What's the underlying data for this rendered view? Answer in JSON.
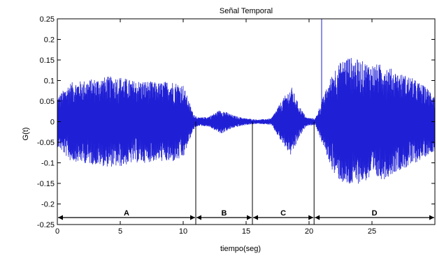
{
  "chart_data": {
    "type": "line",
    "title": "Señal Temporal",
    "xlabel": "tiempo(seg)",
    "ylabel": "G(t)",
    "xlim": [
      0,
      30
    ],
    "ylim": [
      -0.25,
      0.25
    ],
    "xticks": [
      0,
      5,
      10,
      15,
      20,
      25
    ],
    "xtick_labels": [
      "0",
      "5",
      "10",
      "15",
      "20",
      "25"
    ],
    "yticks": [
      -0.25,
      -0.2,
      -0.15,
      -0.1,
      -0.05,
      0,
      0.05,
      0.1,
      0.15,
      0.2,
      0.25
    ],
    "ytick_labels": [
      "-0.25",
      "-0.2",
      "-0.15",
      "-0.1",
      "-0.05",
      "0",
      "0.05",
      "0.1",
      "0.15",
      "0.2",
      "0.25"
    ],
    "grid": false,
    "series": [
      {
        "color": "#1f1fd6",
        "envelope": [
          {
            "t": 0.0,
            "amp": 0.06
          },
          {
            "t": 1.0,
            "amp": 0.095
          },
          {
            "t": 2.0,
            "amp": 0.1
          },
          {
            "t": 3.0,
            "amp": 0.105
          },
          {
            "t": 4.0,
            "amp": 0.11
          },
          {
            "t": 5.0,
            "amp": 0.11
          },
          {
            "t": 6.0,
            "amp": 0.1
          },
          {
            "t": 7.0,
            "amp": 0.1
          },
          {
            "t": 8.0,
            "amp": 0.095
          },
          {
            "t": 9.0,
            "amp": 0.1
          },
          {
            "t": 10.0,
            "amp": 0.09
          },
          {
            "t": 10.8,
            "amp": 0.02
          },
          {
            "t": 11.2,
            "amp": 0.01
          },
          {
            "t": 12.0,
            "amp": 0.012
          },
          {
            "t": 13.0,
            "amp": 0.03
          },
          {
            "t": 14.0,
            "amp": 0.015
          },
          {
            "t": 15.0,
            "amp": 0.008
          },
          {
            "t": 16.0,
            "amp": 0.005
          },
          {
            "t": 17.0,
            "amp": 0.008
          },
          {
            "t": 17.8,
            "amp": 0.05
          },
          {
            "t": 18.6,
            "amp": 0.085
          },
          {
            "t": 19.2,
            "amp": 0.04
          },
          {
            "t": 19.8,
            "amp": 0.01
          },
          {
            "t": 20.5,
            "amp": 0.008
          },
          {
            "t": 21.0,
            "amp": 0.05
          },
          {
            "t": 22.0,
            "amp": 0.13
          },
          {
            "t": 23.0,
            "amp": 0.16
          },
          {
            "t": 24.0,
            "amp": 0.15
          },
          {
            "t": 25.0,
            "amp": 0.14
          },
          {
            "t": 26.0,
            "amp": 0.14
          },
          {
            "t": 27.0,
            "amp": 0.12
          },
          {
            "t": 28.0,
            "amp": 0.11
          },
          {
            "t": 29.0,
            "amp": 0.09
          },
          {
            "t": 30.0,
            "amp": 0.07
          }
        ]
      }
    ],
    "boundaries": [
      11.0,
      15.5,
      20.4
    ],
    "spike_t": 21.0,
    "segments": [
      {
        "label": "A",
        "start": 0,
        "end": 11.0
      },
      {
        "label": "B",
        "start": 11.0,
        "end": 15.5
      },
      {
        "label": "C",
        "start": 15.5,
        "end": 20.4
      },
      {
        "label": "D",
        "start": 20.4,
        "end": 30
      }
    ],
    "segment_arrow_y": -0.233
  }
}
